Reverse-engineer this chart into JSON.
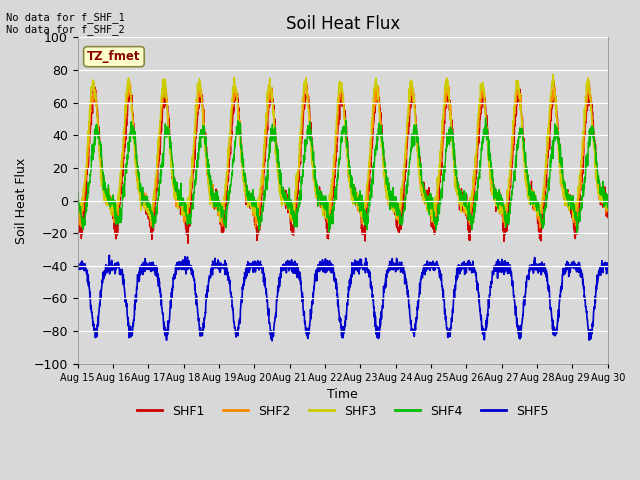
{
  "title": "Soil Heat Flux",
  "xlabel": "Time",
  "ylabel": "Soil Heat Flux",
  "ylim": [
    -100,
    100
  ],
  "yticks": [
    -100,
    -80,
    -60,
    -40,
    -20,
    0,
    20,
    40,
    60,
    80,
    100
  ],
  "xtick_labels": [
    "Aug 15",
    "Aug 16",
    "Aug 17",
    "Aug 18",
    "Aug 19",
    "Aug 20",
    "Aug 21",
    "Aug 22",
    "Aug 23",
    "Aug 24",
    "Aug 25",
    "Aug 26",
    "Aug 27",
    "Aug 28",
    "Aug 29",
    "Aug 30"
  ],
  "annotation_text": "TZ_fmet",
  "top_left_text": "No data for f_SHF_1\nNo data for f_SHF_2",
  "colors": {
    "SHF1": "#cc0000",
    "SHF2": "#ff8800",
    "SHF3": "#cccc00",
    "SHF4": "#00bb00",
    "SHF5": "#0000cc"
  },
  "bg_color": "#d8d8d8",
  "plot_bg_color": "#d8d8d8",
  "n_days": 15,
  "points_per_day": 144
}
